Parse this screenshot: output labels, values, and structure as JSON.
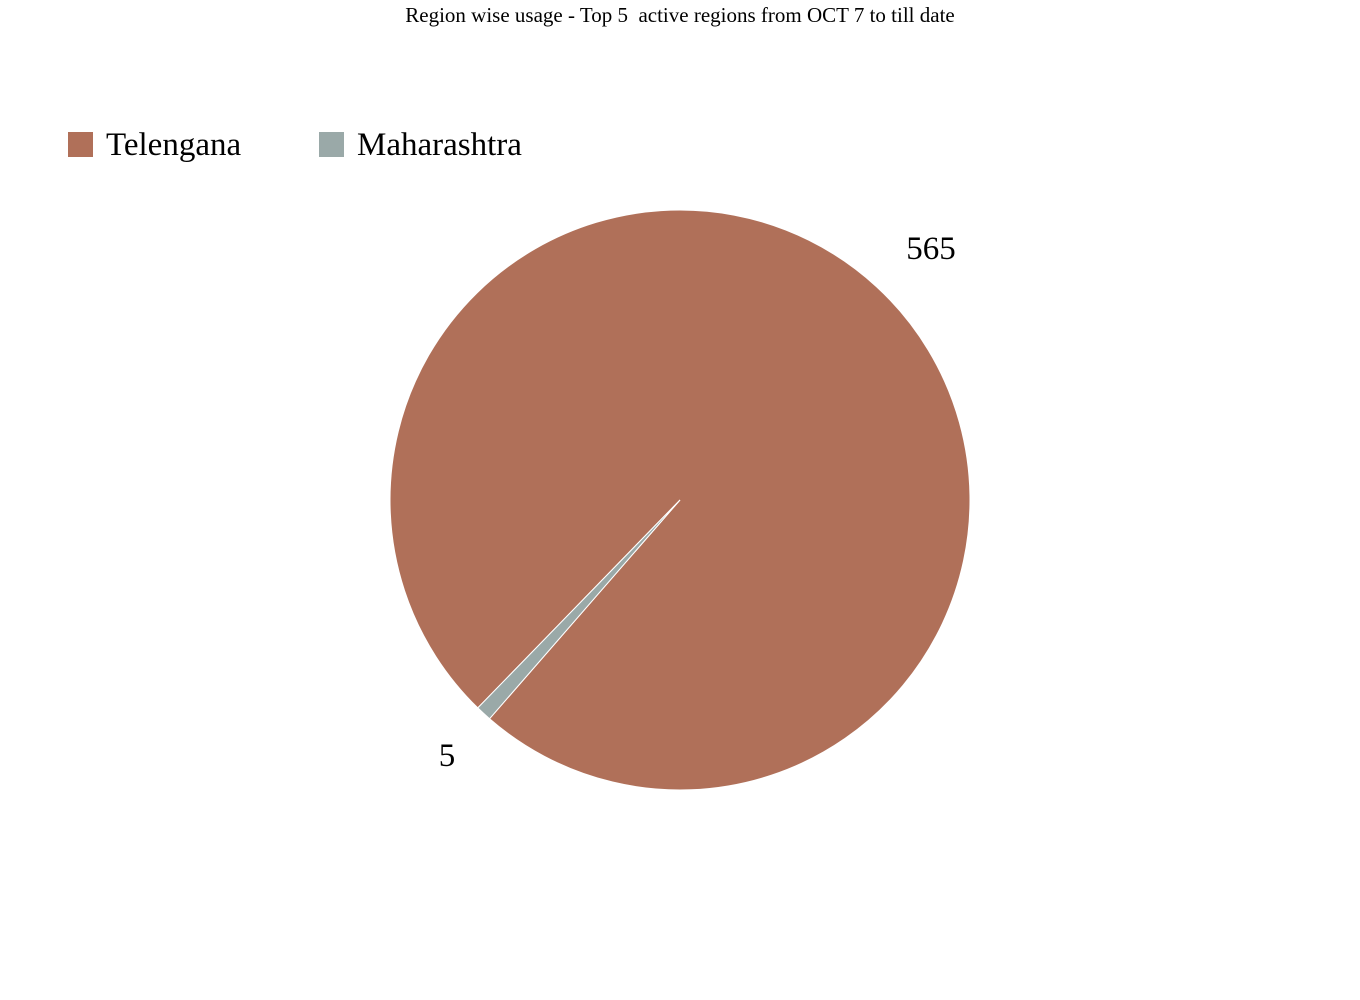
{
  "chart_data": {
    "type": "pie",
    "title": "Region wise usage - Top 5  active regions from OCT 7 to till date",
    "legend_position": "top-left",
    "slices": [
      {
        "label": "Telengana",
        "value": 565,
        "color": "#b07059"
      },
      {
        "label": "Maharashtra",
        "value": 5,
        "color": "#9aa9a8"
      }
    ]
  }
}
